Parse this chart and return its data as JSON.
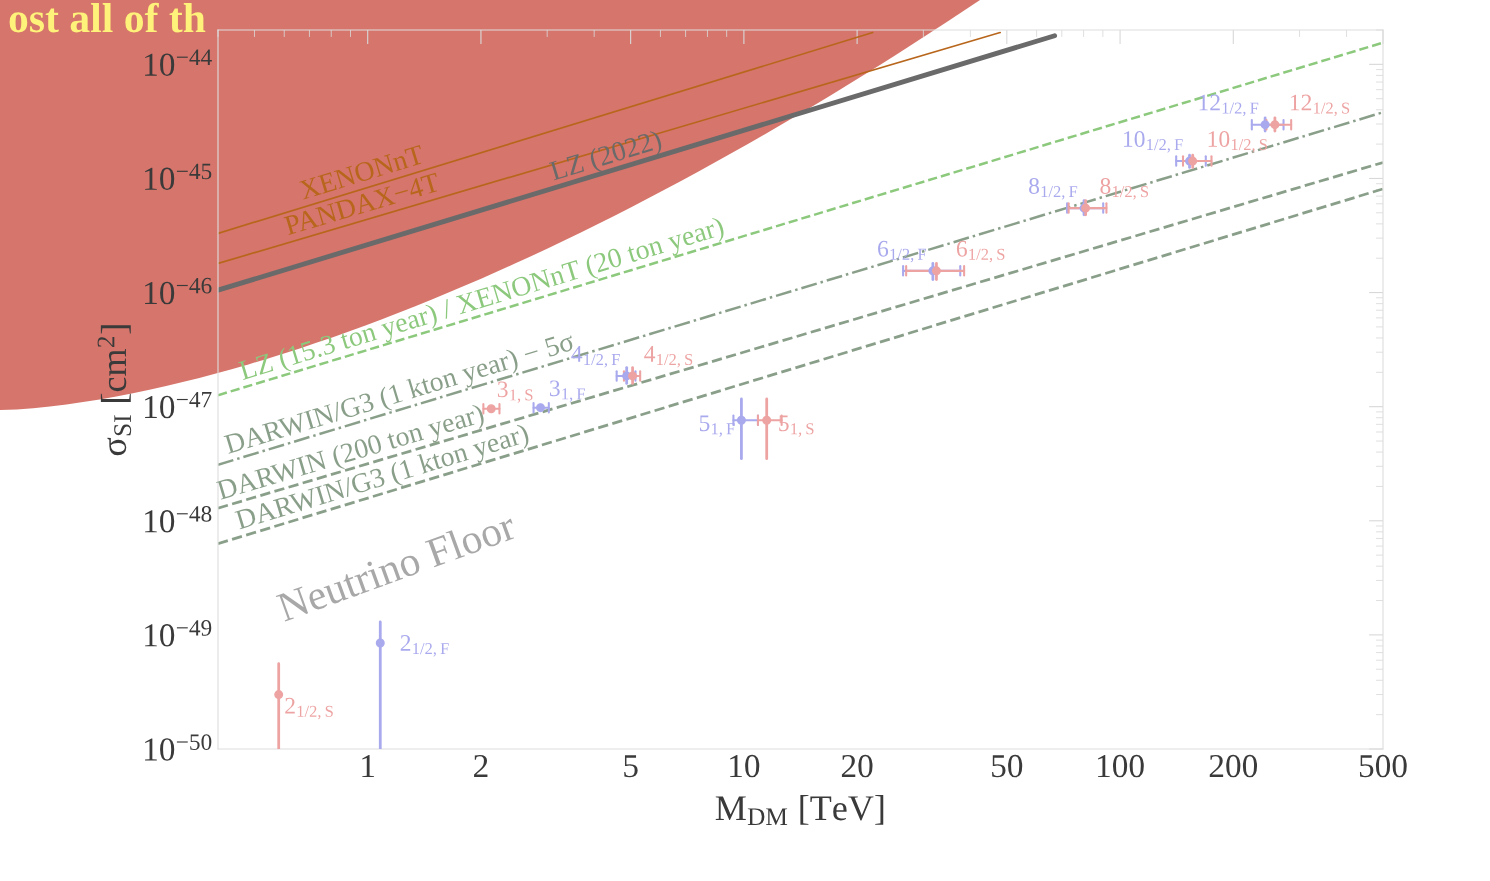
{
  "chart_data": {
    "type": "line",
    "xlabel": "M$_{DM}$ [TeV]",
    "ylabel": "σ$_{SI}$ [cm$^{2}$]",
    "log": "xy",
    "grid": false,
    "xlim": [
      0.4,
      500
    ],
    "ylim": [
      1e-50,
      2e-44
    ],
    "xticks": [
      1,
      2,
      5,
      10,
      20,
      50,
      100,
      200,
      500
    ],
    "yticks": [
      {
        "value": 1e-50,
        "label": "10$^{−50}$"
      },
      {
        "value": 1e-49,
        "label": "10$^{−49}$"
      },
      {
        "value": 1e-48,
        "label": "10$^{−48}$"
      },
      {
        "value": 1e-47,
        "label": "10$^{−47}$"
      },
      {
        "value": 1e-46,
        "label": "10$^{−46}$"
      },
      {
        "value": 1e-45,
        "label": "10$^{−45}$"
      },
      {
        "value": 1e-44,
        "label": "10$^{−44}$"
      }
    ],
    "series": [
      {
        "name": "XENONnT",
        "color": "#b8661c",
        "line_style": "solid",
        "x": [
          0.4,
          22
        ],
        "values": [
          3.3e-46,
          1.9e-44
        ]
      },
      {
        "name": "PANDAX−4T",
        "color": "#b8661c",
        "line_style": "solid",
        "x": [
          0.4,
          48
        ],
        "values": [
          1.8e-46,
          1.9e-44
        ]
      },
      {
        "name": "LZ (2022)",
        "color": "#6a6a6a",
        "line_style": "solid",
        "x": [
          0.4,
          67
        ],
        "values": [
          1.05e-46,
          1.78e-44
        ]
      },
      {
        "name": "LZ (15.3 ton year) / XENONnT (20 ton year)",
        "color": "#8cc97d",
        "line_style": "dashed",
        "x": [
          0.4,
          500
        ],
        "values": [
          1.26e-47,
          1.55e-44
        ]
      },
      {
        "name": "DARWIN/G3 (1 kton year) − 5σ",
        "color": "#8a9f8a",
        "line_style": "dashdot",
        "x": [
          0.4,
          500
        ],
        "values": [
          3.1e-48,
          3.8e-45
        ]
      },
      {
        "name": "DARWIN (200 ton year)",
        "color": "#8a9f8a",
        "line_style": "dashed",
        "x": [
          0.4,
          500
        ],
        "values": [
          1.29e-48,
          1.38e-45
        ]
      },
      {
        "name": "DARWIN/G3 (1 kton year)",
        "color": "#8a9f8a",
        "line_style": "dashed",
        "x": [
          0.4,
          500
        ],
        "values": [
          6.3e-49,
          8.1e-46
        ]
      },
      {
        "type": "scatter",
        "color": "#a9a9ee",
        "marker": "circle",
        "x": [
          1.08,
          2.88,
          4.88,
          9.85,
          31.8,
          80.2,
          153,
          243
        ],
        "values": [
          8.5e-50,
          9.8e-48,
          1.86e-47,
          7.6e-48,
          1.55e-46,
          5.5e-46,
          1.42e-45,
          2.96e-45
        ],
        "errors": [
          [
            1e-50,
            1.3e-49
          ],
          null,
          [
            1.6e-47,
            2.2e-47
          ],
          [
            3.5e-48,
            1.17e-47
          ],
          [
            1.3e-46,
            1.8e-46
          ],
          [
            4.8e-46,
            6.4e-46
          ],
          [
            1.25e-45,
            1.6e-45
          ],
          [
            2.6e-45,
            3.4e-45
          ]
        ],
        "xerrors": [
          null,
          [
            2.76,
            3.03
          ],
          [
            4.59,
            5.15
          ],
          [
            9.38,
            10.9
          ],
          [
            26.5,
            37.6
          ],
          [
            72.3,
            90.2
          ],
          [
            141,
            169
          ],
          [
            224,
            272
          ]
        ]
      },
      {
        "type": "scatter",
        "color": "#eea3a3",
        "marker": "circle",
        "x": [
          0.58,
          2.13,
          5.06,
          11.5,
          32.5,
          81,
          156,
          258
        ],
        "values": [
          3e-50,
          9.6e-48,
          1.86e-47,
          7.6e-48,
          1.55e-46,
          5.5e-46,
          1.42e-45,
          2.96e-45
        ],
        "errors": [
          [
            1e-50,
            5.6e-50
          ],
          null,
          [
            1.6e-47,
            2.2e-47
          ],
          [
            3.5e-48,
            1.17e-47
          ],
          [
            1.3e-46,
            1.8e-46
          ],
          [
            4.8e-46,
            6.4e-46
          ],
          [
            1.25e-45,
            1.6e-45
          ],
          [
            2.6e-45,
            3.4e-45
          ]
        ],
        "xerrors": [
          null,
          [
            2.03,
            2.24
          ],
          [
            4.8,
            5.3
          ],
          [
            10.9,
            12.6
          ],
          [
            27,
            38.5
          ],
          [
            73,
            92
          ],
          [
            147,
            175
          ],
          [
            245,
            285
          ]
        ]
      }
    ],
    "annotations": [
      "ost all of th",
      "Neutrino Floor",
      {
        "text": "2$_{1/2,F}$",
        "x": 1.08,
        "y": 8.5e-50
      },
      {
        "text": "3$_{1,F}$",
        "x": 2.88,
        "y": 9.8e-48
      },
      {
        "text": "4$_{1/2,F}$",
        "x": 4.88,
        "y": 1.86e-47
      },
      {
        "text": "5$_{1,F}$",
        "x": 9.85,
        "y": 7.6e-48
      },
      {
        "text": "6$_{1/2,F}$",
        "x": 31.8,
        "y": 1.55e-46
      },
      {
        "text": "8$_{1/2,F}$",
        "x": 80.2,
        "y": 5.5e-46
      },
      {
        "text": "10$_{1/2,F}$",
        "x": 153,
        "y": 1.42e-45
      },
      {
        "text": "12$_{1/2,F}$",
        "x": 243,
        "y": 2.96e-45
      },
      {
        "text": "2$_{1/2,S}$",
        "x": 0.58,
        "y": 3e-50
      },
      {
        "text": "3$_{1,S}$",
        "x": 2.13,
        "y": 9.6e-48
      },
      {
        "text": "4$_{1/2,S}$",
        "x": 5.06,
        "y": 1.86e-47
      },
      {
        "text": "5$_{1,S}$",
        "x": 11.5,
        "y": 7.6e-48
      },
      {
        "text": "6$_{1/2,S}$",
        "x": 32.5,
        "y": 1.55e-46
      },
      {
        "text": "8$_{1/2,S}$",
        "x": 81,
        "y": 5.5e-46
      },
      {
        "text": "10$_{1/2,S}$",
        "x": 156,
        "y": 1.42e-45
      },
      {
        "text": "12$_{1/2,S}$",
        "x": 258,
        "y": 2.96e-45
      }
    ]
  }
}
